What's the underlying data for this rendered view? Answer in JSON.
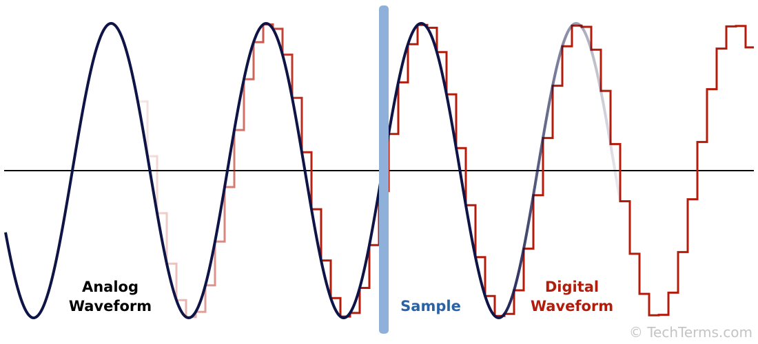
{
  "labels": {
    "analog": [
      "Analog",
      "Waveform"
    ],
    "sample": "Sample",
    "digital": [
      "Digital",
      "Waveform"
    ]
  },
  "watermark": "© TechTerms.com"
}
